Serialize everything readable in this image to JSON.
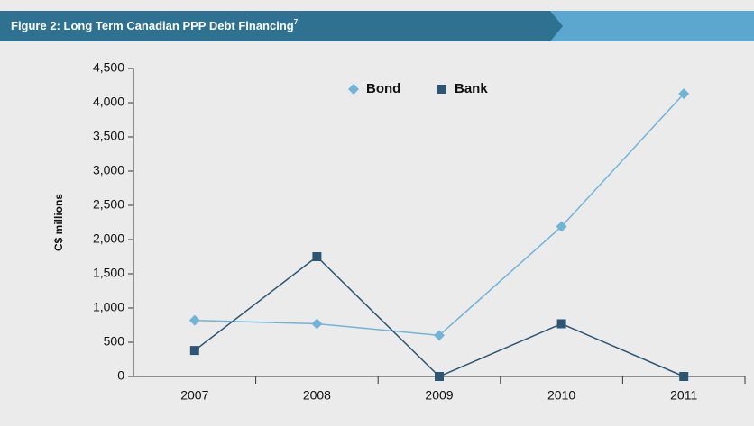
{
  "chart_data": {
    "type": "line",
    "title": "Figure 2: Long Term Canadian PPP Debt Financing",
    "title_note": "7",
    "y_label": "C$ millions",
    "categories": [
      "2007",
      "2008",
      "2009",
      "2010",
      "2011"
    ],
    "series": [
      {
        "name": "Bond",
        "color": "#72b4d8",
        "marker": "diamond",
        "values": [
          820,
          770,
          600,
          2190,
          4130
        ]
      },
      {
        "name": "Bank",
        "color": "#2c5674",
        "marker": "square",
        "values": [
          380,
          1750,
          0,
          770,
          0
        ]
      }
    ],
    "ylim": [
      0,
      4500
    ],
    "yticks": [
      0,
      500,
      {
        "value": 1000,
        "label": "1,000"
      },
      {
        "value": 1500,
        "label": "1,500"
      },
      {
        "value": 2000,
        "label": "2,000"
      },
      {
        "value": 2500,
        "label": "2,500"
      },
      {
        "value": 3000,
        "label": "3,000"
      },
      {
        "value": 3500,
        "label": "3,500"
      },
      {
        "value": 4000,
        "label": "4,000"
      },
      {
        "value": 4500,
        "label": "4,500"
      }
    ]
  }
}
